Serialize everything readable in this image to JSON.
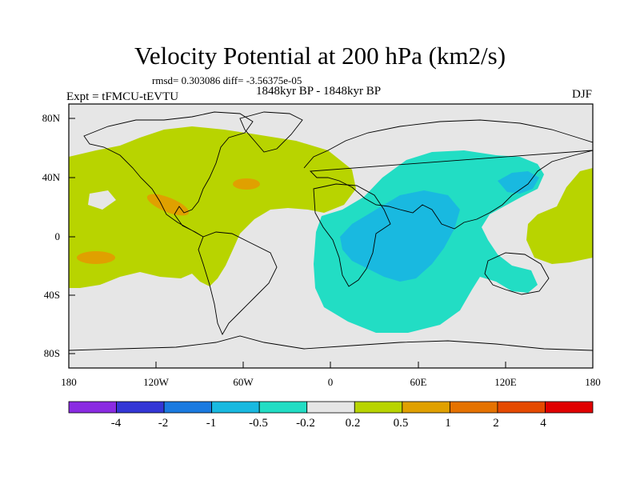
{
  "title": "Velocity Potential at 200 hPa (km2/s)",
  "stats": "rmsd= 0.303086 diff= -3.56375e-05",
  "experiment": "Expt = tFMCU-tEVTU",
  "period": "1848kyr BP - 1848kyr BP",
  "season": "DJF",
  "map": {
    "lon_range": [
      -180,
      180
    ],
    "lat_range": [
      -90,
      90
    ],
    "lat_labels": [
      "80N",
      "40N",
      "0",
      "40S",
      "80S"
    ],
    "lon_labels": [
      "180",
      "120W",
      "60W",
      "0",
      "60E",
      "120E",
      "180"
    ],
    "fields": [
      {
        "name": "positive-anomaly-western-hemisphere",
        "level": "0.2 to 0.5",
        "color": "#b8d400"
      },
      {
        "name": "positive-anomaly-mexico",
        "level": "0.5 to 1",
        "color": "#e0a000"
      },
      {
        "name": "negative-anomaly-indian-ocean",
        "level": "-0.5 to -0.2",
        "color": "#22ddc4"
      },
      {
        "name": "negative-anomaly-core",
        "level": "-1 to -0.5",
        "color": "#19b9e0"
      }
    ]
  },
  "colorbar": {
    "colors": [
      "#8a2be2",
      "#3336d6",
      "#1a7ae0",
      "#19b9e0",
      "#22ddc4",
      "#e6e6e6",
      "#b8d400",
      "#e0a000",
      "#e57200",
      "#e54a00",
      "#e00000"
    ],
    "labels": [
      "-4",
      "-2",
      "-1",
      "-0.5",
      "-0.2",
      "0.2",
      "0.5",
      "1",
      "2",
      "4"
    ]
  }
}
